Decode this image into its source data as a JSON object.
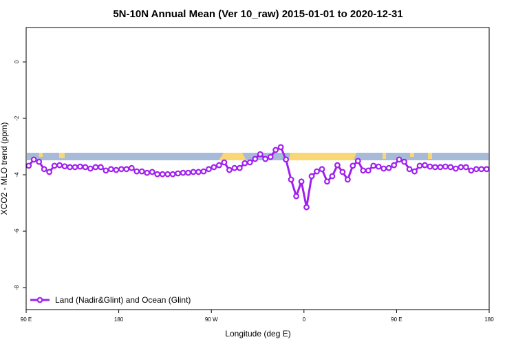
{
  "chart_data": {
    "type": "line",
    "title": "5N-10N Annual Mean (Ver 10_raw)   2015-01-01 to 2020-12-31",
    "x_label": "Longitude (deg E)",
    "y_label": "XCO2 - MLO trend (ppm)",
    "xlim": [
      -270,
      180
    ],
    "ylim": [
      -8.78,
      1.22
    ],
    "xticks": [
      {
        "value": -270,
        "label": "90 E"
      },
      {
        "value": -180,
        "label": "180"
      },
      {
        "value": -90,
        "label": "90 W"
      },
      0,
      {
        "value": 90,
        "label": "90 E"
      },
      {
        "value": 180,
        "label": "180"
      }
    ],
    "yticks": [
      0,
      -2,
      -4,
      -6,
      -8
    ],
    "legend": "bottom-left",
    "series": [
      {
        "name": "Land (Nadir&Glint) and Ocean (Glint)",
        "color": "#a020f0",
        "x": [
          -267.5,
          -262.5,
          -257.5,
          -252.5,
          -247.5,
          -242.5,
          -237.5,
          -232.5,
          -227.5,
          -222.5,
          -217.5,
          -212.5,
          -207.5,
          -202.5,
          -197.5,
          -192.5,
          -187.5,
          -182.5,
          -177.5,
          -172.5,
          -167.5,
          -162.5,
          -157.5,
          -152.5,
          -147.5,
          -142.5,
          -137.5,
          -132.5,
          -127.5,
          -122.5,
          -117.5,
          -112.5,
          -107.5,
          -102.5,
          -97.5,
          -92.5,
          -87.5,
          -82.5,
          -77.5,
          -72.5,
          -67.5,
          -62.5,
          -57.5,
          -52.5,
          -47.5,
          -42.5,
          -37.5,
          -32.5,
          -27.5,
          -22.5,
          -17.5,
          -12.5,
          -7.5,
          -2.5,
          2.5,
          7.5,
          12.5,
          17.5,
          22.5,
          27.5,
          32.5,
          37.5,
          42.5,
          47.5,
          52.5,
          57.5,
          62.5,
          67.5,
          72.5,
          77.5,
          82.5,
          87.5,
          92.5,
          97.5,
          102.5,
          107.5,
          112.5,
          117.5,
          122.5,
          127.5,
          132.5,
          137.5,
          142.5,
          147.5,
          152.5,
          157.5,
          162.5,
          167.5,
          172.5,
          177.5
        ],
        "values": [
          -3.68,
          -3.46,
          -3.54,
          -3.8,
          -3.9,
          -3.68,
          -3.66,
          -3.7,
          -3.73,
          -3.73,
          -3.71,
          -3.73,
          -3.78,
          -3.73,
          -3.73,
          -3.85,
          -3.8,
          -3.83,
          -3.8,
          -3.8,
          -3.76,
          -3.88,
          -3.88,
          -3.93,
          -3.9,
          -3.98,
          -3.98,
          -3.98,
          -3.98,
          -3.95,
          -3.93,
          -3.93,
          -3.9,
          -3.9,
          -3.88,
          -3.8,
          -3.73,
          -3.66,
          -3.56,
          -3.83,
          -3.76,
          -3.76,
          -3.59,
          -3.56,
          -3.44,
          -3.27,
          -3.44,
          -3.37,
          -3.12,
          -3.02,
          -3.46,
          -4.17,
          -4.76,
          -4.24,
          -5.15,
          -4.05,
          -3.88,
          -3.8,
          -4.24,
          -4.05,
          -3.66,
          -3.9,
          -4.17,
          -3.68,
          -3.51,
          -3.85,
          -3.85,
          -3.68,
          -3.71,
          -3.78,
          -3.76,
          -3.66,
          -3.46,
          -3.54,
          -3.8,
          -3.88,
          -3.68,
          -3.66,
          -3.71,
          -3.73,
          -3.73,
          -3.71,
          -3.73,
          -3.78,
          -3.73,
          -3.73,
          -3.85,
          -3.8,
          -3.8,
          -3.8
        ]
      }
    ]
  }
}
